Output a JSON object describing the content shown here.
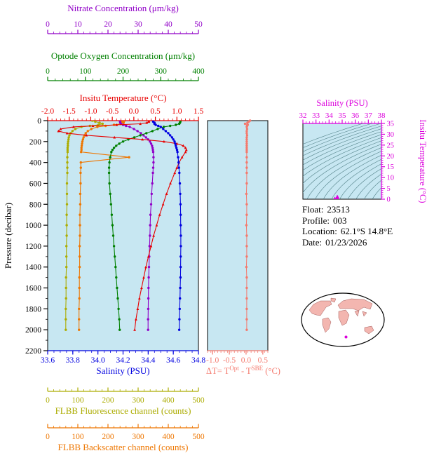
{
  "colors": {
    "plot_bg": "#c7e7f2",
    "nitrate": "#9100c8",
    "oxygen": "#008000",
    "temperature": "#e80000",
    "salinity": "#0000e0",
    "fluorescence": "#acac00",
    "backscatter": "#ee7600",
    "delta_t": "#f4796d",
    "ts_magenta": "#dc00dc",
    "contour": "#528087",
    "land": "#f3b6b0",
    "land_edge": "#8b3a3a",
    "axis_black": "#000000"
  },
  "axes": {
    "nitrate": {
      "title": "Nitrate Concentration (μm/kg)",
      "ticks": [
        "0",
        "10",
        "20",
        "30",
        "40",
        "50"
      ],
      "range": [
        0,
        50
      ],
      "color": "#9100c8"
    },
    "oxygen": {
      "title": "Optode Oxygen Concentration (μm/kg)",
      "ticks": [
        "0",
        "100",
        "200",
        "300",
        "400"
      ],
      "range": [
        0,
        400
      ],
      "color": "#008000"
    },
    "temperature": {
      "title": "Insitu Temperature (°C)",
      "ticks": [
        "-2.0",
        "-1.5",
        "-1.0",
        "-0.5",
        "0.0",
        "0.5",
        "1.0",
        "1.5"
      ],
      "range": [
        -2,
        1.5
      ],
      "color": "#e80000"
    },
    "salinity": {
      "title": "Salinity (PSU)",
      "ticks": [
        "33.6",
        "33.8",
        "34.0",
        "34.2",
        "34.4",
        "34.6",
        "34.8"
      ],
      "range": [
        33.6,
        34.8
      ],
      "color": "#0000e0"
    },
    "fluorescence": {
      "title": "FLBB Fluorescence channel (counts)",
      "ticks": [
        "0",
        "100",
        "200",
        "300",
        "400",
        "500"
      ],
      "range": [
        0,
        500
      ],
      "color": "#acac00"
    },
    "backscatter": {
      "title": "FLBB Backscatter channel (counts)",
      "ticks": [
        "0",
        "100",
        "200",
        "300",
        "400",
        "500"
      ],
      "range": [
        0,
        500
      ],
      "color": "#ee7600"
    },
    "pressure": {
      "title": "Pressure (decibar)",
      "ticks": [
        0,
        200,
        400,
        600,
        800,
        1000,
        1200,
        1400,
        1600,
        1800,
        2000,
        2200
      ],
      "range": [
        0,
        2200
      ],
      "color": "#000000"
    },
    "delta_t": {
      "title_parts": {
        "prefix": "ΔT= T",
        "sup1": "Opt",
        "mid": " - T",
        "sup2": "SBE",
        "suffix": " (°C)"
      },
      "ticks": [
        "-1.0",
        "-0.5",
        "0.0",
        "0.5"
      ],
      "range": [
        -1.15,
        0.65
      ],
      "color": "#f4796d"
    },
    "ts_salinity": {
      "title": "Salinity (PSU)",
      "ticks": [
        "32",
        "33",
        "34",
        "35",
        "36",
        "37",
        "38"
      ],
      "range": [
        32,
        38
      ],
      "color": "#dc00dc"
    },
    "ts_temperature": {
      "title": "Insitu Temperature (°C)",
      "ticks": [
        "0",
        "5",
        "10",
        "15",
        "20",
        "25",
        "30",
        "35"
      ],
      "range": [
        0,
        35
      ],
      "color": "#dc00dc"
    }
  },
  "info": {
    "lines": [
      {
        "label": "Float:",
        "value": "23513"
      },
      {
        "label": "Profile:",
        "value": "003"
      },
      {
        "label": "Location:",
        "value": "62.1°S  14.8°E"
      },
      {
        "label": "Date:",
        "value": "01/23/2026"
      }
    ]
  },
  "chart_data": [
    {
      "type": "line",
      "title": "Float profile plots vs pressure",
      "y_axis": {
        "label": "Pressure (decibar)",
        "range": [
          0,
          2200
        ],
        "inverted": true,
        "ticks": [
          0,
          200,
          400,
          600,
          800,
          1000,
          1200,
          1400,
          1600,
          1800,
          2000,
          2200
        ]
      },
      "pressure": [
        0,
        10,
        20,
        30,
        40,
        50,
        60,
        80,
        100,
        120,
        140,
        160,
        180,
        200,
        220,
        240,
        260,
        280,
        300,
        350,
        400,
        450,
        500,
        600,
        700,
        800,
        900,
        1000,
        1100,
        1200,
        1300,
        1400,
        1500,
        1600,
        1700,
        1800,
        1900,
        2000
      ],
      "series": [
        {
          "name": "Insitu Temperature (°C)",
          "axis": "temperature",
          "axis_range": [
            -2.0,
            1.5
          ],
          "values": [
            0.35,
            0.35,
            0.3,
            0.15,
            -0.4,
            -0.95,
            -1.4,
            -1.7,
            -1.75,
            -1.55,
            -1.1,
            -0.45,
            0.2,
            0.7,
            1.0,
            1.15,
            1.2,
            1.22,
            1.2,
            1.12,
            1.05,
            1.0,
            0.95,
            0.85,
            0.76,
            0.68,
            0.6,
            0.53,
            0.46,
            0.4,
            0.34,
            0.28,
            0.23,
            0.18,
            0.13,
            0.09,
            0.05,
            0.02
          ]
        },
        {
          "name": "Salinity (PSU)",
          "axis": "salinity",
          "axis_range": [
            33.6,
            34.8
          ],
          "values": [
            34.44,
            34.44,
            34.45,
            34.45,
            34.46,
            34.48,
            34.5,
            34.52,
            34.54,
            34.56,
            34.575,
            34.59,
            34.6,
            34.61,
            34.615,
            34.62,
            34.625,
            34.63,
            34.633,
            34.638,
            34.642,
            34.645,
            34.648,
            34.652,
            34.655,
            34.657,
            34.658,
            34.659,
            34.66,
            34.66,
            34.659,
            34.658,
            34.657,
            34.655,
            34.653,
            34.651,
            34.649,
            34.647
          ]
        },
        {
          "name": "Optode Oxygen Concentration (μm/kg)",
          "axis": "oxygen",
          "axis_range": [
            0,
            400
          ],
          "values": [
            352,
            352,
            351,
            349,
            340,
            325,
            308,
            292,
            278,
            262,
            246,
            230,
            214,
            200,
            190,
            182,
            176,
            172,
            169,
            166,
            164,
            163,
            163,
            164,
            166,
            168,
            170,
            172,
            174,
            176,
            178,
            180,
            182,
            184,
            186,
            188,
            190,
            191
          ]
        },
        {
          "name": "Nitrate Concentration (μm/kg)",
          "axis": "nitrate",
          "axis_range": [
            0,
            50
          ],
          "values": [
            24.0,
            24.0,
            24.1,
            24.3,
            25.0,
            26.0,
            27.2,
            28.6,
            29.8,
            30.9,
            31.8,
            32.6,
            33.3,
            33.9,
            34.3,
            34.6,
            34.8,
            34.9,
            35.0,
            35.1,
            35.1,
            35.0,
            34.9,
            34.7,
            34.5,
            34.3,
            34.1,
            34.0,
            33.9,
            33.8,
            33.7,
            33.6,
            33.5,
            33.45,
            33.4,
            33.35,
            33.3,
            33.3
          ]
        },
        {
          "name": "FLBB Fluorescence channel (counts)",
          "axis": "fluorescence",
          "axis_range": [
            0,
            500
          ],
          "values": [
            148,
            158,
            172,
            182,
            168,
            140,
            112,
            92,
            82,
            76,
            72,
            70,
            69,
            68,
            67,
            67,
            66,
            66,
            66,
            65,
            65,
            65,
            65,
            64,
            64,
            64,
            63,
            63,
            63,
            62,
            62,
            62,
            61,
            61,
            61,
            60,
            60,
            60
          ]
        },
        {
          "name": "FLBB Backscatter channel (counts)",
          "axis": "backscatter",
          "axis_range": [
            0,
            500
          ],
          "values": [
            255,
            248,
            252,
            242,
            220,
            192,
            165,
            145,
            133,
            126,
            122,
            119,
            117,
            115,
            114,
            113,
            112,
            112,
            111,
            270,
            110,
            110,
            109,
            109,
            108,
            108,
            107,
            107,
            107,
            106,
            106,
            106,
            105,
            105,
            105,
            104,
            104,
            104
          ]
        }
      ]
    },
    {
      "type": "scatter",
      "title": "ΔT = T(Opt) - T(SBE) (°C) vs pressure",
      "x_range": [
        -1.15,
        0.65
      ],
      "x_ticks": [
        "-1.0",
        "-0.5",
        "0.0",
        "0.5"
      ],
      "pressure": [
        0,
        10,
        20,
        30,
        40,
        50,
        60,
        80,
        100,
        120,
        140,
        160,
        180,
        200,
        220,
        240,
        260,
        280,
        300,
        350,
        400,
        450,
        500,
        600,
        700,
        800,
        900,
        1000,
        1100,
        1200,
        1300,
        1400,
        1500,
        1600,
        1700,
        1800,
        1900,
        2000
      ],
      "values": [
        0.12,
        0.08,
        0.04,
        -0.03,
        0.05,
        0.03,
        0.02,
        0.03,
        0.02,
        0.02,
        0.03,
        0.02,
        0.02,
        0.02,
        0.02,
        0.02,
        0.02,
        0.02,
        0.02,
        0.02,
        0.02,
        0.02,
        0.02,
        0.02,
        0.01,
        0.02,
        0.02,
        0.01,
        0.02,
        0.02,
        0.02,
        0.01,
        0.02,
        0.02,
        0.02,
        0.02,
        0.02,
        0.02
      ]
    },
    {
      "type": "scatter",
      "title": "T-S diagram with density contours",
      "xlabel": "Salinity (PSU)",
      "ylabel": "Insitu Temperature (°C)",
      "x_range": [
        32,
        38
      ],
      "y_range": [
        0,
        35
      ],
      "contour_levels": [
        21,
        21.5,
        22,
        22.5,
        23,
        23.5,
        24,
        24.5,
        25,
        25.5,
        26,
        26.5,
        27,
        27.5,
        28,
        28.5,
        29,
        29.5,
        30
      ],
      "points_source": "temperature and salinity series of chart_data[0] (points with T >= 0 shown)"
    }
  ]
}
